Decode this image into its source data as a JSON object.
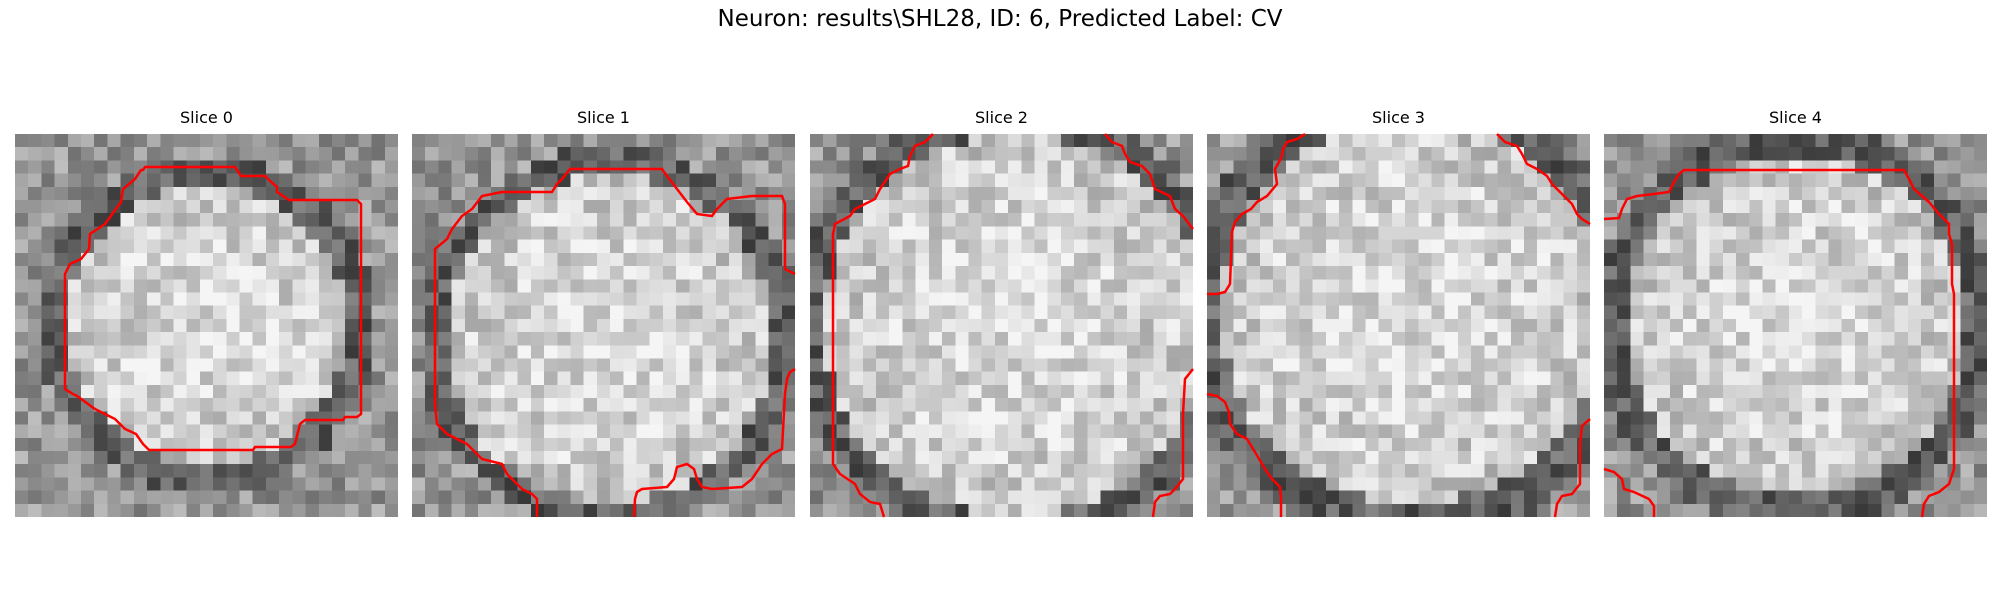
{
  "figure": {
    "suptitle": "Neuron: results\\SHL28, ID: 6, Predicted Label: CV"
  },
  "colors": {
    "contour": "#ff0000"
  },
  "panels": [
    {
      "title": "Slice 0",
      "image": "grayscale-cell-crop",
      "contour": "red-cell-outline"
    },
    {
      "title": "Slice 1",
      "image": "grayscale-cell-crop",
      "contour": "red-cell-outline"
    },
    {
      "title": "Slice 2",
      "image": "grayscale-cell-crop",
      "contour": "red-cell-outline"
    },
    {
      "title": "Slice 3",
      "image": "grayscale-cell-crop",
      "contour": "red-cell-outline"
    },
    {
      "title": "Slice 4",
      "image": "grayscale-cell-crop",
      "contour": "red-cell-outline"
    }
  ]
}
